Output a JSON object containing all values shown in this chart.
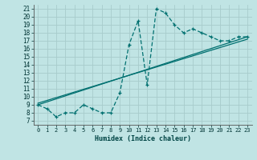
{
  "xlabel": "Humidex (Indice chaleur)",
  "bg_color": "#c0e4e4",
  "grid_color": "#a8cccc",
  "line_color": "#007070",
  "xlim": [
    -0.5,
    23.5
  ],
  "ylim": [
    6.5,
    21.5
  ],
  "yticks": [
    7,
    8,
    9,
    10,
    11,
    12,
    13,
    14,
    15,
    16,
    17,
    18,
    19,
    20,
    21
  ],
  "xticks": [
    0,
    1,
    2,
    3,
    4,
    5,
    6,
    7,
    8,
    9,
    10,
    11,
    12,
    13,
    14,
    15,
    16,
    17,
    18,
    19,
    20,
    21,
    22,
    23
  ],
  "dashed_x": [
    0,
    1,
    2,
    3,
    4,
    5,
    6,
    7,
    8,
    9,
    10,
    11,
    12,
    13,
    14,
    15,
    16,
    17,
    18,
    19,
    20,
    21,
    22,
    23
  ],
  "dashed_y": [
    9.0,
    8.5,
    7.5,
    8.0,
    8.0,
    9.0,
    8.5,
    8.0,
    8.0,
    10.5,
    16.5,
    19.5,
    11.5,
    21.0,
    20.5,
    19.0,
    18.0,
    18.5,
    18.0,
    17.5,
    17.0,
    17.0,
    17.5,
    17.5
  ],
  "line1_x": [
    0,
    23
  ],
  "line1_y": [
    9.0,
    17.5
  ],
  "line2_x": [
    0,
    23
  ],
  "line2_y": [
    9.2,
    17.2
  ]
}
